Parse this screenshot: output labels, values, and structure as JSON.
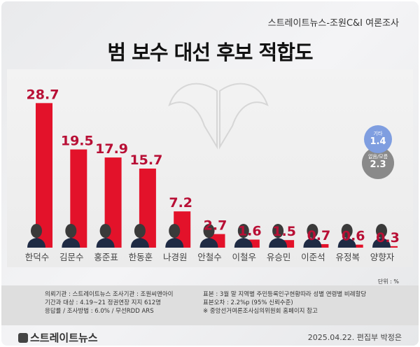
{
  "header": {
    "subtitle": "스트레이트뉴스-조원C&I 여론조사",
    "title": "범 보수 대선 후보 적합도"
  },
  "chart_data": {
    "type": "bar",
    "title": "범 보수 대선 후보 적합도",
    "categories": [
      "한덕수",
      "김문수",
      "홍준표",
      "한동훈",
      "나경원",
      "안철수",
      "이철우",
      "유승민",
      "이준석",
      "유정복",
      "양향자"
    ],
    "values": [
      28.7,
      19.5,
      17.9,
      15.7,
      7.2,
      2.7,
      1.6,
      1.5,
      0.7,
      0.6,
      0.3
    ],
    "value_labels": [
      "28.7",
      "19.5",
      "17.9",
      "15.7",
      "7.2",
      "2.7",
      "1.6",
      "1.5",
      "0.7",
      "0.6",
      "0.3"
    ],
    "unit": "단위 : %",
    "extra": [
      {
        "label": "기타",
        "value": "1.4",
        "color": "#7f9ee0"
      },
      {
        "label": "없음/모름",
        "value": "2.3",
        "color": "#8a8a8a"
      }
    ],
    "bar_color": "#e3122a",
    "value_color": "#b80f35"
  },
  "footer": {
    "left": [
      "의뢰기관 : 스트레이트뉴스  조사기관 : 조원씨앤아이",
      "기간과 대상 : 4.19~21  정권연장 지지 612명",
      "응답률 / 조사방법 : 6.0% / 무선RDD ARS"
    ],
    "right": [
      "표본 : 3월 말 지역별 주민등록인구현황따라 성별 연령별 비례할당",
      "표본오차 : 2.2%p (95% 신뢰수준)",
      "※ 중앙선거여론조사심의위원회 홈페이지 참고"
    ],
    "logo": "스트레이트뉴스",
    "date": "2025.04.22. 편집부 박정은"
  }
}
